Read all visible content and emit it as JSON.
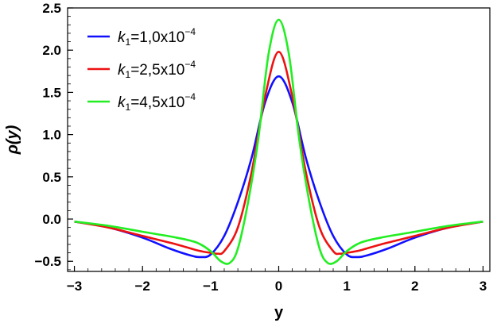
{
  "chart_data": {
    "type": "line",
    "xlabel": "y",
    "ylabel": "ρ(y)",
    "xlim": [
      -3.1,
      3.1
    ],
    "ylim": [
      -0.62,
      2.5
    ],
    "xticks": [
      -3,
      -2,
      -1,
      0,
      1,
      2,
      3
    ],
    "xtick_labels": [
      "−3",
      "−2",
      "−1",
      "0",
      "1",
      "2",
      "3"
    ],
    "yticks": [
      -0.5,
      0.0,
      0.5,
      1.0,
      1.5,
      2.0,
      2.5
    ],
    "ytick_labels": [
      "−0.5",
      "0.0",
      "0.5",
      "1.0",
      "1.5",
      "2.0",
      "2.5"
    ],
    "legend_position": "top-left",
    "series": [
      {
        "legend": {
          "k": "k",
          "sub": "1",
          "value": "=1,0x10",
          "exp": "−4"
        },
        "color": "#1010ff",
        "x": [
          -3,
          -2.5,
          -2,
          -1.6,
          -1.3,
          -1.15,
          -1.0,
          -0.8,
          -0.6,
          -0.4,
          -0.2,
          0,
          0.2,
          0.4,
          0.6,
          0.8,
          1.0,
          1.15,
          1.3,
          1.6,
          2,
          2.5,
          3
        ],
        "y": [
          -0.03,
          -0.1,
          -0.22,
          -0.35,
          -0.43,
          -0.45,
          -0.42,
          -0.2,
          0.2,
          0.72,
          1.38,
          1.69,
          1.38,
          0.72,
          0.2,
          -0.2,
          -0.42,
          -0.45,
          -0.43,
          -0.35,
          -0.22,
          -0.1,
          -0.03
        ]
      },
      {
        "legend": {
          "k": "k",
          "sub": "1",
          "value": "=2,5x10",
          "exp": "−4"
        },
        "color": "#ee1111",
        "x": [
          -3,
          -2.5,
          -2,
          -1.5,
          -1.2,
          -1.0,
          -0.9,
          -0.8,
          -0.6,
          -0.4,
          -0.2,
          0,
          0.2,
          0.4,
          0.6,
          0.8,
          0.9,
          1.0,
          1.2,
          1.5,
          2,
          2.5,
          3
        ],
        "y": [
          -0.03,
          -0.1,
          -0.2,
          -0.3,
          -0.37,
          -0.4,
          -0.41,
          -0.38,
          -0.1,
          0.55,
          1.45,
          1.98,
          1.45,
          0.55,
          -0.1,
          -0.38,
          -0.41,
          -0.4,
          -0.37,
          -0.3,
          -0.2,
          -0.1,
          -0.03
        ]
      },
      {
        "legend": {
          "k": "k",
          "sub": "1",
          "value": "=4,5x10",
          "exp": "−4"
        },
        "color": "#22ee22",
        "x": [
          -3,
          -2.5,
          -2,
          -1.5,
          -1.2,
          -1.0,
          -0.85,
          -0.72,
          -0.6,
          -0.45,
          -0.3,
          -0.15,
          0,
          0.15,
          0.3,
          0.45,
          0.6,
          0.72,
          0.85,
          1.0,
          1.2,
          1.5,
          2,
          2.5,
          3
        ],
        "y": [
          -0.03,
          -0.08,
          -0.15,
          -0.22,
          -0.28,
          -0.38,
          -0.5,
          -0.52,
          -0.35,
          0.2,
          0.95,
          1.95,
          2.36,
          1.95,
          0.95,
          0.2,
          -0.35,
          -0.52,
          -0.5,
          -0.38,
          -0.28,
          -0.22,
          -0.15,
          -0.08,
          -0.03
        ]
      }
    ]
  }
}
